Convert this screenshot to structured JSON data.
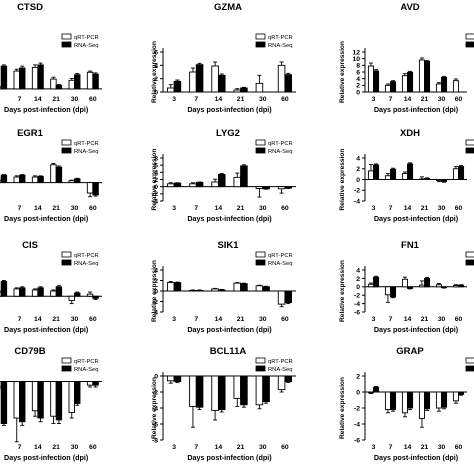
{
  "chart_data": [
    {
      "type": "bar",
      "title": "CTSD",
      "xlabel": "Days post-infection (dpi)",
      "ylabel": "",
      "categories": [
        "",
        "7",
        "14",
        "21",
        "30",
        "60"
      ],
      "ylim": [
        -0.5,
        6
      ],
      "yticks": [],
      "legend": [
        "qRT-PCR",
        "RNA-Seq"
      ],
      "legend_position": "top-right",
      "series": [
        {
          "name": "qRT-PCR",
          "values": [
            0.3,
            2.9,
            3.5,
            1.6,
            1.4,
            2.7
          ]
        },
        {
          "name": "RNA-Seq",
          "values": [
            3.7,
            3.4,
            3.9,
            0.6,
            2.3,
            2.4
          ]
        }
      ],
      "errors": [
        [
          0.1,
          0.3,
          0.4,
          0.3,
          0.3,
          0.2
        ],
        [
          0.2,
          0.3,
          0.3,
          0.1,
          0.2,
          0.2
        ]
      ]
    },
    {
      "type": "bar",
      "title": "GZMA",
      "xlabel": "Days post-infection (dpi)",
      "ylabel": "Relative expression",
      "categories": [
        "3",
        "7",
        "14",
        "21",
        "30",
        "60"
      ],
      "ylim": [
        0,
        6
      ],
      "yticks": [
        0,
        2,
        4,
        6
      ],
      "legend": [
        "qRT-PCR",
        "RNA-Seq"
      ],
      "legend_position": "top-right",
      "series": [
        {
          "name": "qRT-PCR",
          "values": [
            0.6,
            3.0,
            3.9,
            0.3,
            1.3,
            4.0
          ]
        },
        {
          "name": "RNA-Seq",
          "values": [
            1.6,
            4.1,
            2.5,
            0.6,
            0.0,
            2.6
          ]
        }
      ],
      "errors": [
        [
          0.5,
          0.6,
          0.6,
          0.2,
          1.2,
          0.5
        ],
        [
          0.2,
          0.2,
          0.2,
          0.1,
          0.0,
          0.2
        ]
      ]
    },
    {
      "type": "bar",
      "title": "AVD",
      "xlabel": "Days post-infection (dpi)",
      "ylabel": "Relative expression",
      "categories": [
        "3",
        "7",
        "14",
        "21",
        "30",
        "60"
      ],
      "ylim": [
        0,
        12
      ],
      "yticks": [
        0,
        2,
        4,
        6,
        8,
        10,
        12
      ],
      "legend": [
        "",
        ""
      ],
      "legend_position": "top-right",
      "series": [
        {
          "name": "qRT-PCR",
          "values": [
            7.8,
            2.0,
            4.9,
            9.6,
            2.4,
            3.4
          ]
        },
        {
          "name": "RNA-Seq",
          "values": [
            6.3,
            3.1,
            5.9,
            9.2,
            4.4,
            0.0
          ]
        }
      ],
      "errors": [
        [
          0.9,
          0.4,
          0.6,
          0.6,
          0.4,
          0.5
        ],
        [
          0.4,
          0.3,
          0.3,
          0.2,
          0.3,
          0.0
        ]
      ]
    },
    {
      "type": "bar",
      "title": "EGR1",
      "xlabel": "Days post-infection (dpi)",
      "ylabel": "",
      "categories": [
        "",
        "7",
        "14",
        "21",
        "30",
        "60"
      ],
      "ylim": [
        -3,
        4
      ],
      "yticks": [],
      "legend": [
        "qRT-PCR",
        "RNA-Seq"
      ],
      "legend_position": "top-right",
      "series": [
        {
          "name": "qRT-PCR",
          "values": [
            0.3,
            0.9,
            0.9,
            2.9,
            0.3,
            -1.7
          ]
        },
        {
          "name": "RNA-Seq",
          "values": [
            1.2,
            1.2,
            1.0,
            2.5,
            0.6,
            -2.0
          ]
        }
      ],
      "errors": [
        [
          0.1,
          0.2,
          0.2,
          0.2,
          0.1,
          0.6
        ],
        [
          0.1,
          0.1,
          0.1,
          0.2,
          0.1,
          0.2
        ]
      ]
    },
    {
      "type": "bar",
      "title": "LYG2",
      "xlabel": "Days post-infection (dpi)",
      "ylabel": "Relative expression",
      "categories": [
        "3",
        "7",
        "14",
        "21",
        "30",
        "60"
      ],
      "ylim": [
        -4,
        8
      ],
      "yticks": [
        -4,
        -2,
        0,
        2,
        4,
        6,
        8
      ],
      "legend": [
        "qRT-PCR",
        "RNA-Seq"
      ],
      "legend_position": "top-right",
      "series": [
        {
          "name": "qRT-PCR",
          "values": [
            0.8,
            0.8,
            1.3,
            2.6,
            -0.5,
            -0.6
          ]
        },
        {
          "name": "RNA-Seq",
          "values": [
            1.0,
            1.2,
            3.4,
            5.8,
            -0.6,
            -0.4
          ]
        }
      ],
      "errors": [
        [
          0.3,
          0.3,
          0.8,
          1.2,
          2.4,
          1.2
        ],
        [
          0.1,
          0.1,
          0.3,
          0.3,
          0.1,
          0.1
        ]
      ]
    },
    {
      "type": "bar",
      "title": "XDH",
      "xlabel": "Days post-infection (dpi)",
      "ylabel": "Relative expression",
      "categories": [
        "3",
        "7",
        "14",
        "21",
        "30",
        "60"
      ],
      "ylim": [
        -4,
        4
      ],
      "yticks": [
        -4,
        -2,
        0,
        2,
        4
      ],
      "legend": [
        "qRT-PCR",
        "RNA-Seq"
      ],
      "legend_position": "top-right",
      "series": [
        {
          "name": "qRT-PCR",
          "values": [
            1.6,
            0.7,
            1.1,
            0.1,
            -0.2,
            2.0
          ]
        },
        {
          "name": "RNA-Seq",
          "values": [
            2.7,
            1.9,
            2.9,
            0.2,
            -0.4,
            2.4
          ]
        }
      ],
      "errors": [
        [
          1.2,
          0.4,
          0.3,
          0.4,
          0.2,
          0.4
        ],
        [
          0.2,
          0.2,
          0.2,
          0.1,
          0.1,
          0.2
        ]
      ]
    },
    {
      "type": "bar",
      "title": "CIS",
      "xlabel": "Days post-infection (dpi)",
      "ylabel": "",
      "categories": [
        "",
        "7",
        "14",
        "21",
        "30",
        "60"
      ],
      "ylim": [
        -1.5,
        2.5
      ],
      "yticks": [],
      "legend": [
        "qRT-PCR",
        "RNA-Seq"
      ],
      "legend_position": "top-right",
      "series": [
        {
          "name": "qRT-PCR",
          "values": [
            0.4,
            0.7,
            0.6,
            0.5,
            -0.4,
            0.2
          ]
        },
        {
          "name": "RNA-Seq",
          "values": [
            1.4,
            0.8,
            0.8,
            0.9,
            0.3,
            -0.2
          ]
        }
      ],
      "errors": [
        [
          0.1,
          0.1,
          0.1,
          0.1,
          0.3,
          0.2
        ],
        [
          0.1,
          0.1,
          0.1,
          0.1,
          0.1,
          0.1
        ]
      ]
    },
    {
      "type": "bar",
      "title": "SIK1",
      "xlabel": "Days post-infection (dpi)",
      "ylabel": "Relative expression",
      "categories": [
        "3",
        "7",
        "14",
        "21",
        "30",
        "60"
      ],
      "ylim": [
        -4,
        4
      ],
      "yticks": [
        -4,
        -2,
        0,
        2,
        4
      ],
      "legend": [
        "qRT-PCR",
        "RNA-Seq"
      ],
      "legend_position": "top-right",
      "series": [
        {
          "name": "qRT-PCR",
          "values": [
            1.6,
            0.1,
            0.4,
            1.5,
            1.0,
            -2.5
          ]
        },
        {
          "name": "RNA-Seq",
          "values": [
            1.6,
            0.1,
            0.2,
            1.4,
            0.8,
            -2.2
          ]
        }
      ],
      "errors": [
        [
          0.2,
          0.1,
          0.1,
          0.1,
          0.1,
          0.5
        ],
        [
          0.1,
          0.1,
          0.1,
          0.1,
          0.1,
          0.2
        ]
      ]
    },
    {
      "type": "bar",
      "title": "FN1",
      "xlabel": "Days post-infection (dpi)",
      "ylabel": "Relative expression",
      "categories": [
        "3",
        "7",
        "14",
        "21",
        "30",
        "60"
      ],
      "ylim": [
        -6,
        4
      ],
      "yticks": [
        -6,
        -4,
        -2,
        0,
        2,
        4
      ],
      "legend": [
        "",
        ""
      ],
      "legend_position": "top-right",
      "series": [
        {
          "name": "qRT-PCR",
          "values": [
            0.6,
            -1.9,
            1.8,
            0.4,
            0.5,
            0.3
          ]
        },
        {
          "name": "RNA-Seq",
          "values": [
            2.3,
            -2.4,
            -0.4,
            2.0,
            -0.2,
            0.4
          ]
        }
      ],
      "errors": [
        [
          0.3,
          1.8,
          0.5,
          1.0,
          0.3,
          0.2
        ],
        [
          0.2,
          0.2,
          0.1,
          0.2,
          0.1,
          0.1
        ]
      ]
    },
    {
      "type": "bar",
      "title": "CD79B",
      "xlabel": "Days post-infection (dpi)",
      "ylabel": "",
      "categories": [
        "",
        "7",
        "14",
        "21",
        "30",
        "60"
      ],
      "ylim": [
        -3.2,
        0.3
      ],
      "yticks": [],
      "legend": [
        "qRT-PCR",
        "RNA-Seq"
      ],
      "legend_position": "top-right",
      "series": [
        {
          "name": "qRT-PCR",
          "values": [
            -0.3,
            -2.0,
            -1.6,
            -1.9,
            -1.7,
            -0.2
          ]
        },
        {
          "name": "RNA-Seq",
          "values": [
            -2.3,
            -2.2,
            -2.0,
            -2.1,
            -1.2,
            -0.2
          ]
        }
      ],
      "errors": [
        [
          0.1,
          1.3,
          0.3,
          0.4,
          0.3,
          0.1
        ],
        [
          0.1,
          0.2,
          0.2,
          0.2,
          0.1,
          0.1
        ]
      ]
    },
    {
      "type": "bar",
      "title": "BCL11A",
      "xlabel": "Days post-infection (dpi)",
      "ylabel": "Relative expression",
      "categories": [
        "3",
        "7",
        "14",
        "21",
        "30",
        "60"
      ],
      "ylim": [
        -8,
        0
      ],
      "yticks": [
        -8,
        -6,
        -4,
        -2,
        0
      ],
      "legend": [
        "qRT-PCR",
        "RNA-Seq"
      ],
      "legend_position": "top-right",
      "series": [
        {
          "name": "qRT-PCR",
          "values": [
            -0.6,
            -3.8,
            -4.3,
            -2.8,
            -3.6,
            -1.7
          ]
        },
        {
          "name": "RNA-Seq",
          "values": [
            -0.7,
            -3.9,
            -4.2,
            -3.6,
            -3.2,
            -0.7
          ]
        }
      ],
      "errors": [
        [
          0.3,
          2.6,
          1.2,
          1.0,
          0.5,
          0.3
        ],
        [
          0.1,
          0.3,
          0.3,
          0.3,
          0.2,
          0.1
        ]
      ]
    },
    {
      "type": "bar",
      "title": "GRAP",
      "xlabel": "Days post-infection (dpi)",
      "ylabel": "Relative expression",
      "categories": [
        "3",
        "7",
        "14",
        "21",
        "30",
        "60"
      ],
      "ylim": [
        -6,
        2
      ],
      "yticks": [
        -6,
        -4,
        -2,
        0,
        2
      ],
      "legend": [
        "",
        ""
      ],
      "legend_position": "top-right",
      "series": [
        {
          "name": "qRT-PCR",
          "values": [
            -0.1,
            -2.2,
            -2.6,
            -3.3,
            -2.0,
            -1.1
          ]
        },
        {
          "name": "RNA-Seq",
          "values": [
            0.6,
            -2.2,
            -2.0,
            -2.1,
            -1.9,
            -0.3
          ]
        }
      ],
      "errors": [
        [
          0.1,
          0.4,
          0.5,
          1.1,
          0.4,
          0.3
        ],
        [
          0.1,
          0.2,
          0.2,
          0.2,
          0.2,
          0.1
        ]
      ]
    }
  ]
}
